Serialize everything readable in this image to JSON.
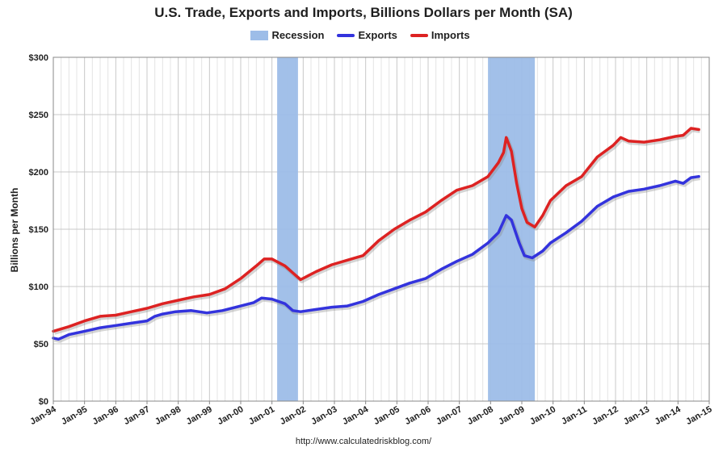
{
  "chart_data": {
    "type": "line",
    "title": "U.S. Trade, Exports and Imports, Billions Dollars per Month (SA)",
    "ylabel": "Billions per Month",
    "xlabel": "",
    "ylim": [
      0,
      300
    ],
    "y_ticks": [
      "$0",
      "$50",
      "$100",
      "$150",
      "$200",
      "$250",
      "$300"
    ],
    "x_ticks": [
      "Jan-94",
      "Jan-95",
      "Jan-96",
      "Jan-97",
      "Jan-98",
      "Jan-99",
      "Jan-00",
      "Jan-01",
      "Jan-02",
      "Jan-03",
      "Jan-04",
      "Jan-05",
      "Jan-06",
      "Jan-07",
      "Jan-08",
      "Jan-09",
      "Jan-10",
      "Jan-11",
      "Jan-12",
      "Jan-13",
      "Jan-14",
      "Jan-15"
    ],
    "xlim": [
      "1994-01",
      "2015-01"
    ],
    "grid": true,
    "legend_placement": "top-center",
    "legend": [
      "Recession",
      "Exports",
      "Imports"
    ],
    "recessions": [
      {
        "start": "2001-03",
        "end": "2001-11"
      },
      {
        "start": "2007-12",
        "end": "2009-06"
      }
    ],
    "series": [
      {
        "name": "Exports",
        "color": "#3333dd",
        "points": [
          [
            "1994-01",
            55
          ],
          [
            "1994-03",
            54
          ],
          [
            "1994-07",
            58
          ],
          [
            "1995-01",
            61
          ],
          [
            "1995-07",
            64
          ],
          [
            "1996-01",
            66
          ],
          [
            "1996-07",
            68
          ],
          [
            "1997-01",
            70
          ],
          [
            "1997-04",
            74
          ],
          [
            "1997-07",
            76
          ],
          [
            "1997-12",
            78
          ],
          [
            "1998-06",
            79
          ],
          [
            "1998-12",
            77
          ],
          [
            "1999-06",
            79
          ],
          [
            "2000-01",
            83
          ],
          [
            "2000-06",
            86
          ],
          [
            "2000-09",
            90
          ],
          [
            "2001-01",
            89
          ],
          [
            "2001-06",
            85
          ],
          [
            "2001-09",
            79
          ],
          [
            "2001-12",
            78
          ],
          [
            "2002-06",
            80
          ],
          [
            "2002-12",
            82
          ],
          [
            "2003-06",
            83
          ],
          [
            "2003-12",
            87
          ],
          [
            "2004-06",
            93
          ],
          [
            "2004-12",
            98
          ],
          [
            "2005-06",
            103
          ],
          [
            "2005-12",
            107
          ],
          [
            "2006-06",
            115
          ],
          [
            "2006-12",
            122
          ],
          [
            "2007-06",
            128
          ],
          [
            "2007-12",
            138
          ],
          [
            "2008-04",
            147
          ],
          [
            "2008-07",
            162
          ],
          [
            "2008-09",
            158
          ],
          [
            "2008-12",
            138
          ],
          [
            "2009-02",
            127
          ],
          [
            "2009-05",
            125
          ],
          [
            "2009-09",
            131
          ],
          [
            "2009-12",
            138
          ],
          [
            "2010-06",
            147
          ],
          [
            "2010-12",
            157
          ],
          [
            "2011-06",
            170
          ],
          [
            "2011-12",
            178
          ],
          [
            "2012-06",
            183
          ],
          [
            "2012-12",
            185
          ],
          [
            "2013-06",
            188
          ],
          [
            "2013-12",
            192
          ],
          [
            "2014-03",
            190
          ],
          [
            "2014-06",
            195
          ],
          [
            "2014-09",
            196
          ]
        ]
      },
      {
        "name": "Imports",
        "color": "#dd2222",
        "points": [
          [
            "1994-01",
            61
          ],
          [
            "1994-07",
            65
          ],
          [
            "1995-01",
            70
          ],
          [
            "1995-07",
            74
          ],
          [
            "1996-01",
            75
          ],
          [
            "1996-07",
            78
          ],
          [
            "1997-01",
            81
          ],
          [
            "1997-07",
            85
          ],
          [
            "1998-01",
            88
          ],
          [
            "1998-07",
            91
          ],
          [
            "1999-01",
            93
          ],
          [
            "1999-07",
            98
          ],
          [
            "2000-01",
            107
          ],
          [
            "2000-07",
            118
          ],
          [
            "2000-10",
            124
          ],
          [
            "2001-01",
            124
          ],
          [
            "2001-06",
            118
          ],
          [
            "2001-09",
            112
          ],
          [
            "2001-12",
            106
          ],
          [
            "2002-06",
            113
          ],
          [
            "2002-12",
            119
          ],
          [
            "2003-06",
            123
          ],
          [
            "2003-12",
            127
          ],
          [
            "2004-06",
            140
          ],
          [
            "2004-12",
            150
          ],
          [
            "2005-06",
            158
          ],
          [
            "2005-12",
            165
          ],
          [
            "2006-06",
            175
          ],
          [
            "2006-12",
            184
          ],
          [
            "2007-06",
            188
          ],
          [
            "2007-12",
            196
          ],
          [
            "2008-04",
            208
          ],
          [
            "2008-06",
            217
          ],
          [
            "2008-07",
            230
          ],
          [
            "2008-09",
            218
          ],
          [
            "2008-11",
            190
          ],
          [
            "2009-01",
            168
          ],
          [
            "2009-03",
            156
          ],
          [
            "2009-06",
            152
          ],
          [
            "2009-09",
            162
          ],
          [
            "2009-12",
            175
          ],
          [
            "2010-06",
            188
          ],
          [
            "2010-12",
            196
          ],
          [
            "2011-06",
            213
          ],
          [
            "2011-12",
            223
          ],
          [
            "2012-03",
            230
          ],
          [
            "2012-06",
            227
          ],
          [
            "2012-12",
            226
          ],
          [
            "2013-06",
            228
          ],
          [
            "2013-12",
            231
          ],
          [
            "2014-03",
            232
          ],
          [
            "2014-06",
            238
          ],
          [
            "2014-09",
            237
          ]
        ]
      }
    ]
  },
  "legend_labels": {
    "recession": "Recession",
    "exports": "Exports",
    "imports": "Imports"
  },
  "source_url": "http://www.calculatedriskblog.com/",
  "colors": {
    "recession": "#9dbde8",
    "exports": "#3333dd",
    "imports": "#dd2222"
  }
}
